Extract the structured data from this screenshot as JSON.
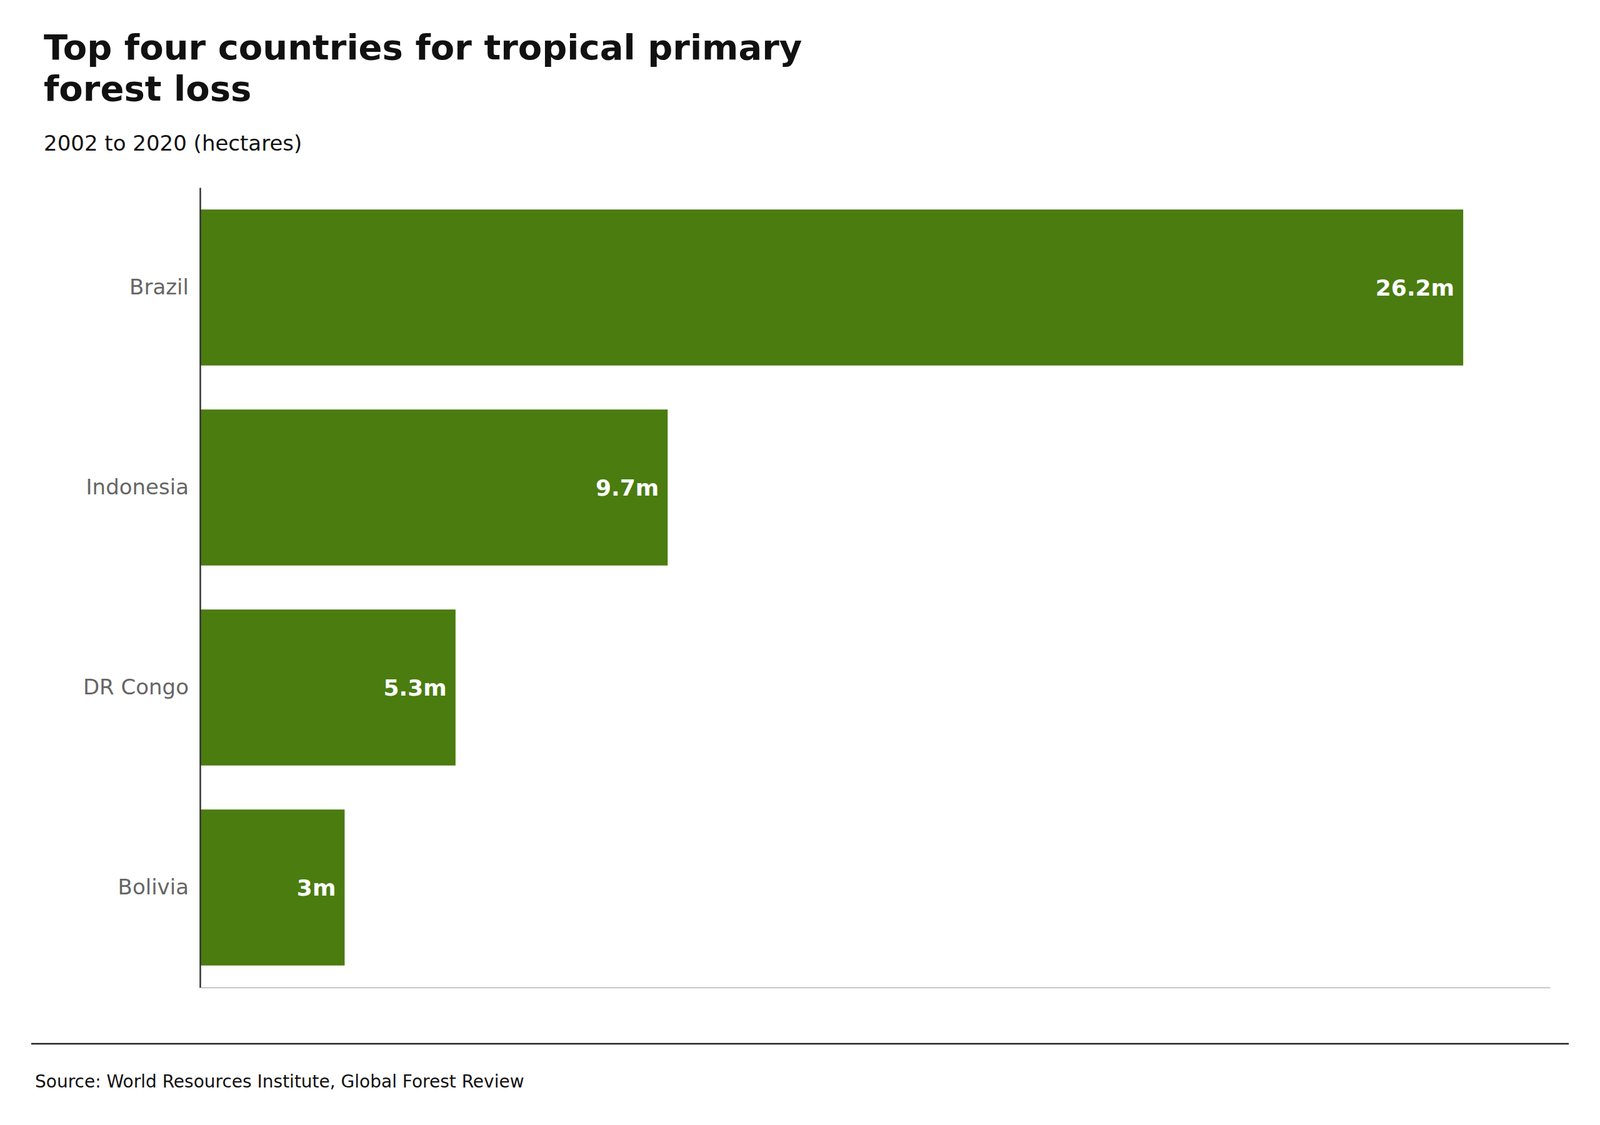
{
  "chart_data": {
    "type": "bar",
    "orientation": "horizontal",
    "title": "Top four countries for tropical primary\nforest loss",
    "subtitle": "2002 to 2020 (hectares)",
    "source": "Source: World Resources Institute, Global Forest Review",
    "categories": [
      "Brazil",
      "Indonesia",
      "DR Congo",
      "Bolivia"
    ],
    "values": [
      26.2,
      9.7,
      5.3,
      3.0
    ],
    "value_labels": [
      "26.2m",
      "9.7m",
      "5.3m",
      "3m"
    ],
    "data_labels": true,
    "color": "#4a7c10",
    "xlim": [
      0,
      28
    ],
    "tick_labels": "y",
    "grid": false
  }
}
